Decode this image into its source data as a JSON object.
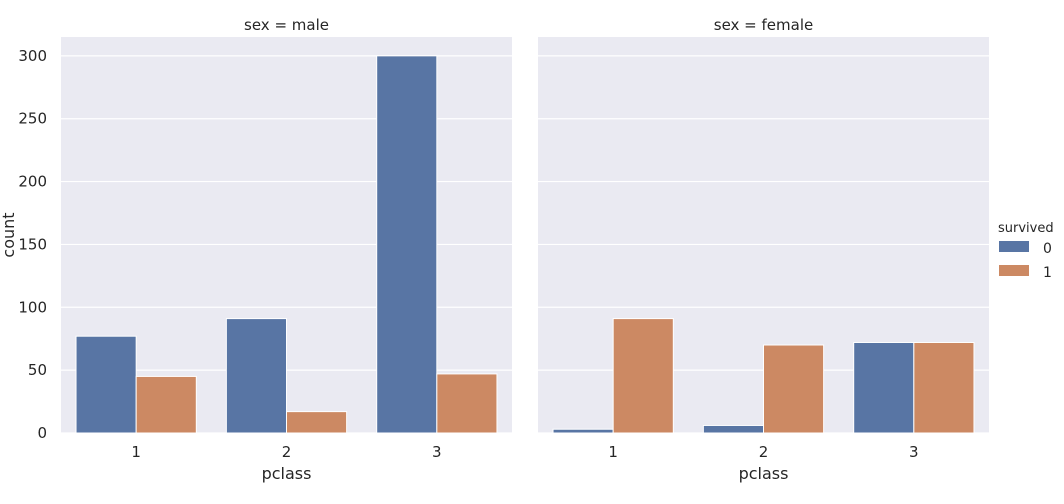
{
  "chart_data": [
    {
      "type": "bar",
      "title": "sex = male",
      "xlabel": "pclass",
      "ylabel": "count",
      "categories": [
        "1",
        "2",
        "3"
      ],
      "ylim": [
        0,
        315
      ],
      "yticks": [
        0,
        50,
        100,
        150,
        200,
        250,
        300
      ],
      "grid": true,
      "series": [
        {
          "name": "0",
          "values": [
            77,
            91,
            300
          ]
        },
        {
          "name": "1",
          "values": [
            45,
            17,
            47
          ]
        }
      ]
    },
    {
      "type": "bar",
      "title": "sex = female",
      "xlabel": "pclass",
      "ylabel": "",
      "categories": [
        "1",
        "2",
        "3"
      ],
      "ylim": [
        0,
        315
      ],
      "yticks": [
        0,
        50,
        100,
        150,
        200,
        250,
        300
      ],
      "grid": true,
      "series": [
        {
          "name": "0",
          "values": [
            3,
            6,
            72
          ]
        },
        {
          "name": "1",
          "values": [
            91,
            70,
            72
          ]
        }
      ]
    }
  ],
  "legend": {
    "title": "survived",
    "placement": "right",
    "entries": [
      "0",
      "1"
    ]
  },
  "colors": {
    "series": [
      "#5875a4",
      "#cc8963"
    ],
    "plot_bg": "#eaeaf2",
    "grid": "#ffffff"
  }
}
